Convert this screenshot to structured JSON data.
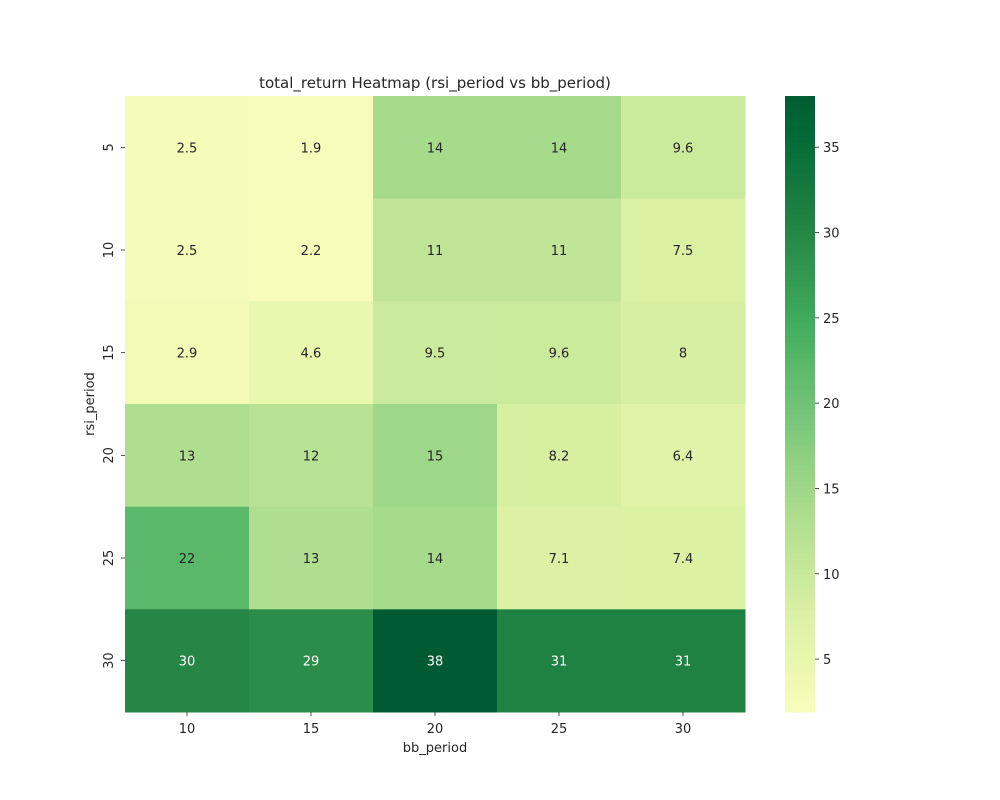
{
  "chart_data": {
    "type": "heatmap",
    "title": "total_return Heatmap (rsi_period vs bb_period)",
    "xlabel": "bb_period",
    "ylabel": "rsi_period",
    "x": [
      "10",
      "15",
      "20",
      "25",
      "30"
    ],
    "y": [
      "5",
      "10",
      "15",
      "20",
      "25",
      "30"
    ],
    "values": [
      [
        2.5,
        1.9,
        14,
        14,
        9.6
      ],
      [
        2.5,
        2.2,
        11,
        11,
        7.5
      ],
      [
        2.9,
        4.6,
        9.5,
        9.6,
        8
      ],
      [
        13,
        12,
        15,
        8.2,
        6.4
      ],
      [
        22,
        13,
        14,
        7.1,
        7.4
      ],
      [
        30,
        29,
        38,
        31,
        31
      ]
    ],
    "colormap": "YlGn",
    "vmin": 1.9,
    "vmax": 38,
    "colorbar_ticks": [
      "5",
      "10",
      "15",
      "20",
      "25",
      "30",
      "35"
    ],
    "annotation_colors": {
      "dark_text": "#262626",
      "light_text": "#ffffff"
    }
  }
}
